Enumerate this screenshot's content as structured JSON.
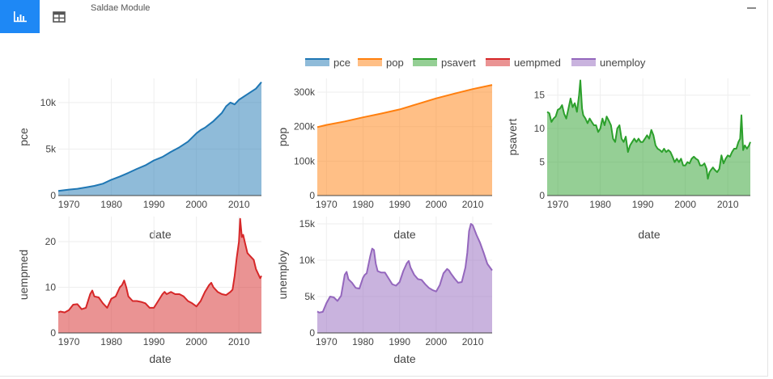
{
  "module": {
    "title": "Saldae Module",
    "tabs": [
      {
        "name": "chart",
        "icon": "bar-chart-icon",
        "active": true
      },
      {
        "name": "table",
        "icon": "table-icon",
        "active": false
      }
    ],
    "minimize_icon": "minimize-icon"
  },
  "legend": [
    {
      "name": "pce",
      "color": "#1f77b4"
    },
    {
      "name": "pop",
      "color": "#ff7f0e"
    },
    {
      "name": "psavert",
      "color": "#2ca02c"
    },
    {
      "name": "uempmed",
      "color": "#d62728"
    },
    {
      "name": "unemploy",
      "color": "#9467bd"
    }
  ],
  "chart_data": [
    {
      "type": "area",
      "series_name": "pce",
      "color": "#1f77b4",
      "xlabel": "date",
      "ylabel": "pce",
      "xlim": [
        1967.5,
        2015.3
      ],
      "ylim": [
        0,
        12600
      ],
      "xticks": [
        1970,
        1980,
        1990,
        2000,
        2010
      ],
      "xtick_labels": [
        "1970",
        "1980",
        "1990",
        "2000",
        "2010"
      ],
      "yticks": [
        0,
        5000,
        10000
      ],
      "ytick_labels": [
        "0",
        "5k",
        "10k"
      ],
      "x": [
        1967.5,
        1970,
        1972,
        1974,
        1976,
        1978,
        1980,
        1982,
        1984,
        1986,
        1988,
        1990,
        1992,
        1994,
        1996,
        1998,
        2000,
        2001,
        2002,
        2004,
        2006,
        2007,
        2008,
        2009,
        2010,
        2012,
        2014,
        2015.3
      ],
      "y": [
        507,
        640,
        730,
        880,
        1040,
        1280,
        1700,
        2050,
        2440,
        2870,
        3250,
        3780,
        4150,
        4700,
        5200,
        5800,
        6700,
        7050,
        7300,
        8000,
        8900,
        9600,
        10000,
        9800,
        10300,
        10900,
        11500,
        12200
      ]
    },
    {
      "type": "area",
      "series_name": "pop",
      "color": "#ff7f0e",
      "xlabel": "date",
      "ylabel": "pop",
      "xlim": [
        1967.5,
        2015.3
      ],
      "ylim": [
        0,
        340000
      ],
      "xticks": [
        1970,
        1980,
        1990,
        2000,
        2010
      ],
      "xtick_labels": [
        "1970",
        "1980",
        "1990",
        "2000",
        "2010"
      ],
      "yticks": [
        0,
        100000,
        200000,
        300000
      ],
      "ytick_labels": [
        "0",
        "100k",
        "200k",
        "300k"
      ],
      "x": [
        1967.5,
        1970,
        1975,
        1980,
        1985,
        1990,
        1995,
        2000,
        2005,
        2010,
        2015.3
      ],
      "y": [
        198700,
        205000,
        215000,
        227000,
        238000,
        250000,
        266000,
        282000,
        296000,
        309000,
        321000
      ]
    },
    {
      "type": "area",
      "series_name": "psavert",
      "color": "#2ca02c",
      "xlabel": "date",
      "ylabel": "psavert",
      "xlim": [
        1967.5,
        2015.3
      ],
      "ylim": [
        0,
        17.5
      ],
      "xticks": [
        1970,
        1980,
        1990,
        2000,
        2010
      ],
      "xtick_labels": [
        "1970",
        "1980",
        "1990",
        "2000",
        "2010"
      ],
      "yticks": [
        0,
        5,
        10,
        15
      ],
      "ytick_labels": [
        "0",
        "5",
        "10",
        "15"
      ],
      "x": [
        1967.5,
        1968,
        1968.5,
        1969,
        1969.5,
        1970,
        1970.5,
        1971,
        1971.5,
        1972,
        1972.5,
        1973,
        1973.5,
        1974,
        1974.5,
        1975,
        1975.3,
        1975.7,
        1976,
        1976.5,
        1977,
        1977.5,
        1978,
        1978.5,
        1979,
        1979.5,
        1980,
        1980.5,
        1981,
        1981.5,
        1982,
        1982.5,
        1983,
        1983.5,
        1984,
        1984.5,
        1985,
        1985.5,
        1986,
        1986.5,
        1987,
        1987.5,
        1988,
        1988.5,
        1989,
        1989.5,
        1990,
        1990.5,
        1991,
        1991.5,
        1992,
        1992.5,
        1993,
        1993.5,
        1994,
        1994.5,
        1995,
        1995.5,
        1996,
        1996.5,
        1997,
        1997.5,
        1998,
        1998.5,
        1999,
        1999.5,
        2000,
        2000.5,
        2001,
        2001.5,
        2002,
        2002.5,
        2003,
        2003.5,
        2004,
        2004.5,
        2005,
        2005.3,
        2005.7,
        2006,
        2006.5,
        2007,
        2007.5,
        2008,
        2008.5,
        2009,
        2009.5,
        2010,
        2010.5,
        2011,
        2011.5,
        2012,
        2012.5,
        2012.9,
        2013.2,
        2013.6,
        2014,
        2014.5,
        2015,
        2015.3
      ],
      "y": [
        12.5,
        12.3,
        11.0,
        11.5,
        11.8,
        12.8,
        13.0,
        13.5,
        12.2,
        11.5,
        13.0,
        14.5,
        13.2,
        13.8,
        12.5,
        15.0,
        17.2,
        13.0,
        12.0,
        11.5,
        10.8,
        11.5,
        11.0,
        10.5,
        10.5,
        9.5,
        10.0,
        11.5,
        10.5,
        11.8,
        11.2,
        10.5,
        8.5,
        8.0,
        10.0,
        10.5,
        8.5,
        8.0,
        8.8,
        6.5,
        7.5,
        8.0,
        8.5,
        8.0,
        8.5,
        8.0,
        8.0,
        8.5,
        9.0,
        8.5,
        9.8,
        9.0,
        7.5,
        7.0,
        6.8,
        6.5,
        7.0,
        6.5,
        6.8,
        6.5,
        5.8,
        5.0,
        5.5,
        5.0,
        5.5,
        4.5,
        4.5,
        5.0,
        4.8,
        5.5,
        5.8,
        5.5,
        5.3,
        4.5,
        4.5,
        4.8,
        4.0,
        2.5,
        3.5,
        3.8,
        4.2,
        3.8,
        3.5,
        4.0,
        6.0,
        4.8,
        5.5,
        6.0,
        5.8,
        6.5,
        7.0,
        7.0,
        8.0,
        8.5,
        12.0,
        6.8,
        7.5,
        7.0,
        7.5,
        8.0
      ]
    },
    {
      "type": "area",
      "series_name": "uempmed",
      "color": "#d62728",
      "xlabel": "date",
      "ylabel": "uempmed",
      "xlim": [
        1967.5,
        2015.3
      ],
      "ylim": [
        0,
        25.5
      ],
      "xticks": [
        1970,
        1980,
        1990,
        2000,
        2010
      ],
      "xtick_labels": [
        "1970",
        "1980",
        "1990",
        "2000",
        "2010"
      ],
      "yticks": [
        0,
        10,
        20
      ],
      "ytick_labels": [
        "0",
        "10",
        "20"
      ],
      "x": [
        1967.5,
        1968,
        1969,
        1970,
        1971,
        1972,
        1973,
        1974,
        1975,
        1975.5,
        1976,
        1977,
        1978,
        1979,
        1980,
        1981,
        1982,
        1982.5,
        1983,
        1983.5,
        1984,
        1985,
        1986,
        1987,
        1988,
        1989,
        1990,
        1991,
        1992,
        1992.5,
        1993,
        1994,
        1995,
        1996,
        1997,
        1998,
        1999,
        2000,
        2001,
        2002,
        2003,
        2003.5,
        2004,
        2005,
        2006,
        2007,
        2008,
        2008.5,
        2009,
        2009.5,
        2010,
        2010.3,
        2010.7,
        2011,
        2011.5,
        2012,
        2012.5,
        2013,
        2013.5,
        2014,
        2014.5,
        2015,
        2015.3
      ],
      "y": [
        4.5,
        4.7,
        4.5,
        5.0,
        6.2,
        6.3,
        5.2,
        5.5,
        8.5,
        9.3,
        8.0,
        7.8,
        6.5,
        5.5,
        7.5,
        8.0,
        10.0,
        10.5,
        11.5,
        10.0,
        8.0,
        7.0,
        7.0,
        6.8,
        6.5,
        5.5,
        5.5,
        7.0,
        8.5,
        9.0,
        8.5,
        9.0,
        8.5,
        8.5,
        8.0,
        7.0,
        6.5,
        5.8,
        7.0,
        9.0,
        10.5,
        11.0,
        10.0,
        9.0,
        8.5,
        8.3,
        9.0,
        9.5,
        12.5,
        16.5,
        20.0,
        25.0,
        21.0,
        21.5,
        19.5,
        17.5,
        17.0,
        16.5,
        16.0,
        14.0,
        13.0,
        12.0,
        12.5
      ]
    },
    {
      "type": "area",
      "series_name": "unemploy",
      "color": "#9467bd",
      "xlabel": "date",
      "ylabel": "unemploy",
      "xlim": [
        1967.5,
        2015.3
      ],
      "ylim": [
        0,
        16000
      ],
      "xticks": [
        1970,
        1980,
        1990,
        2000,
        2010
      ],
      "xtick_labels": [
        "1970",
        "1980",
        "1990",
        "2000",
        "2010"
      ],
      "yticks": [
        0,
        5000,
        10000,
        15000
      ],
      "ytick_labels": [
        "0",
        "5k",
        "10k",
        "15k"
      ],
      "x": [
        1967.5,
        1968,
        1969,
        1970,
        1971,
        1972,
        1973,
        1974,
        1975,
        1975.5,
        1976,
        1977,
        1978,
        1979,
        1980,
        1980.5,
        1981,
        1982,
        1982.5,
        1983,
        1983.5,
        1984,
        1985,
        1986,
        1987,
        1988,
        1989,
        1990,
        1991,
        1992,
        1992.5,
        1993,
        1994,
        1995,
        1996,
        1997,
        1998,
        1999,
        2000,
        2001,
        2002,
        2003,
        2003.5,
        2004,
        2005,
        2006,
        2007,
        2008,
        2008.5,
        2009,
        2009.5,
        2010,
        2011,
        2012,
        2013,
        2014,
        2015.3
      ],
      "y": [
        2950,
        2800,
        2900,
        4100,
        5000,
        4900,
        4400,
        5100,
        8000,
        8400,
        7400,
        6900,
        6200,
        6100,
        7600,
        8000,
        8200,
        10600,
        11600,
        11400,
        9500,
        8500,
        8300,
        8300,
        7500,
        6700,
        6500,
        7000,
        8500,
        9600,
        9900,
        9000,
        8000,
        7400,
        7300,
        6700,
        6200,
        5900,
        5700,
        6600,
        8200,
        8800,
        8600,
        8200,
        7500,
        6900,
        7000,
        9000,
        11000,
        14000,
        15000,
        14800,
        13500,
        12400,
        11000,
        9500,
        8600
      ]
    }
  ]
}
